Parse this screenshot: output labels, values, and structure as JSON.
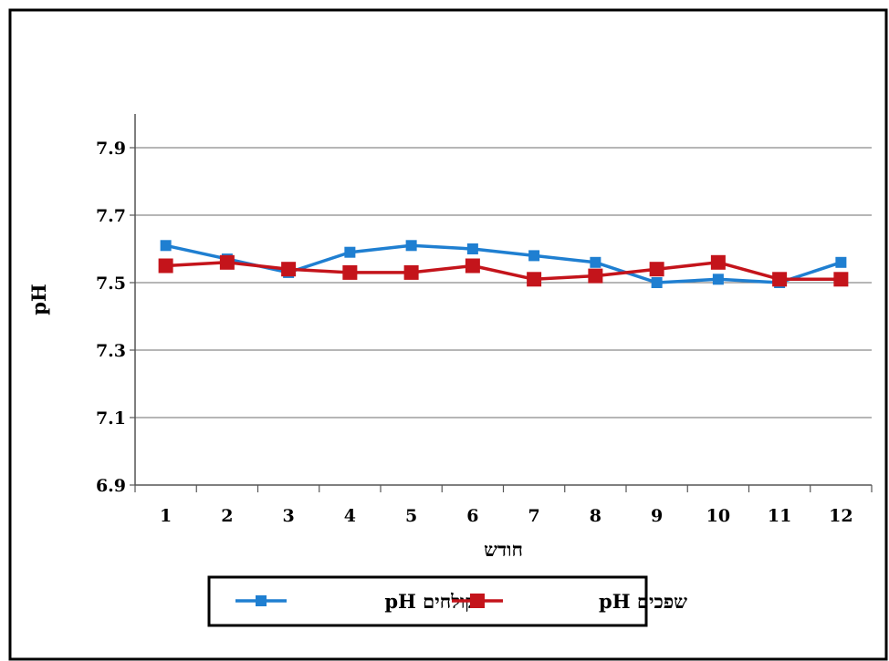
{
  "chart_data": {
    "type": "line",
    "title": "",
    "xlabel": "חודש",
    "ylabel": "pH",
    "x": [
      1,
      2,
      3,
      4,
      5,
      6,
      7,
      8,
      9,
      10,
      11,
      12
    ],
    "ylim": [
      6.9,
      8.0
    ],
    "yticks": [
      6.9,
      7.1,
      7.3,
      7.5,
      7.7,
      7.9
    ],
    "grid": true,
    "legend_position": "bottom",
    "series": [
      {
        "name": "pH קולחים",
        "color": "#1f7fd1",
        "marker": "square-small",
        "values": [
          7.61,
          7.57,
          7.53,
          7.59,
          7.61,
          7.6,
          7.58,
          7.56,
          7.5,
          7.51,
          7.5,
          7.56
        ]
      },
      {
        "name": "pH שפכים",
        "color": "#c4141b",
        "marker": "square-large",
        "values": [
          7.55,
          7.56,
          7.54,
          7.53,
          7.53,
          7.55,
          7.51,
          7.52,
          7.54,
          7.56,
          7.51,
          7.51
        ]
      }
    ]
  }
}
